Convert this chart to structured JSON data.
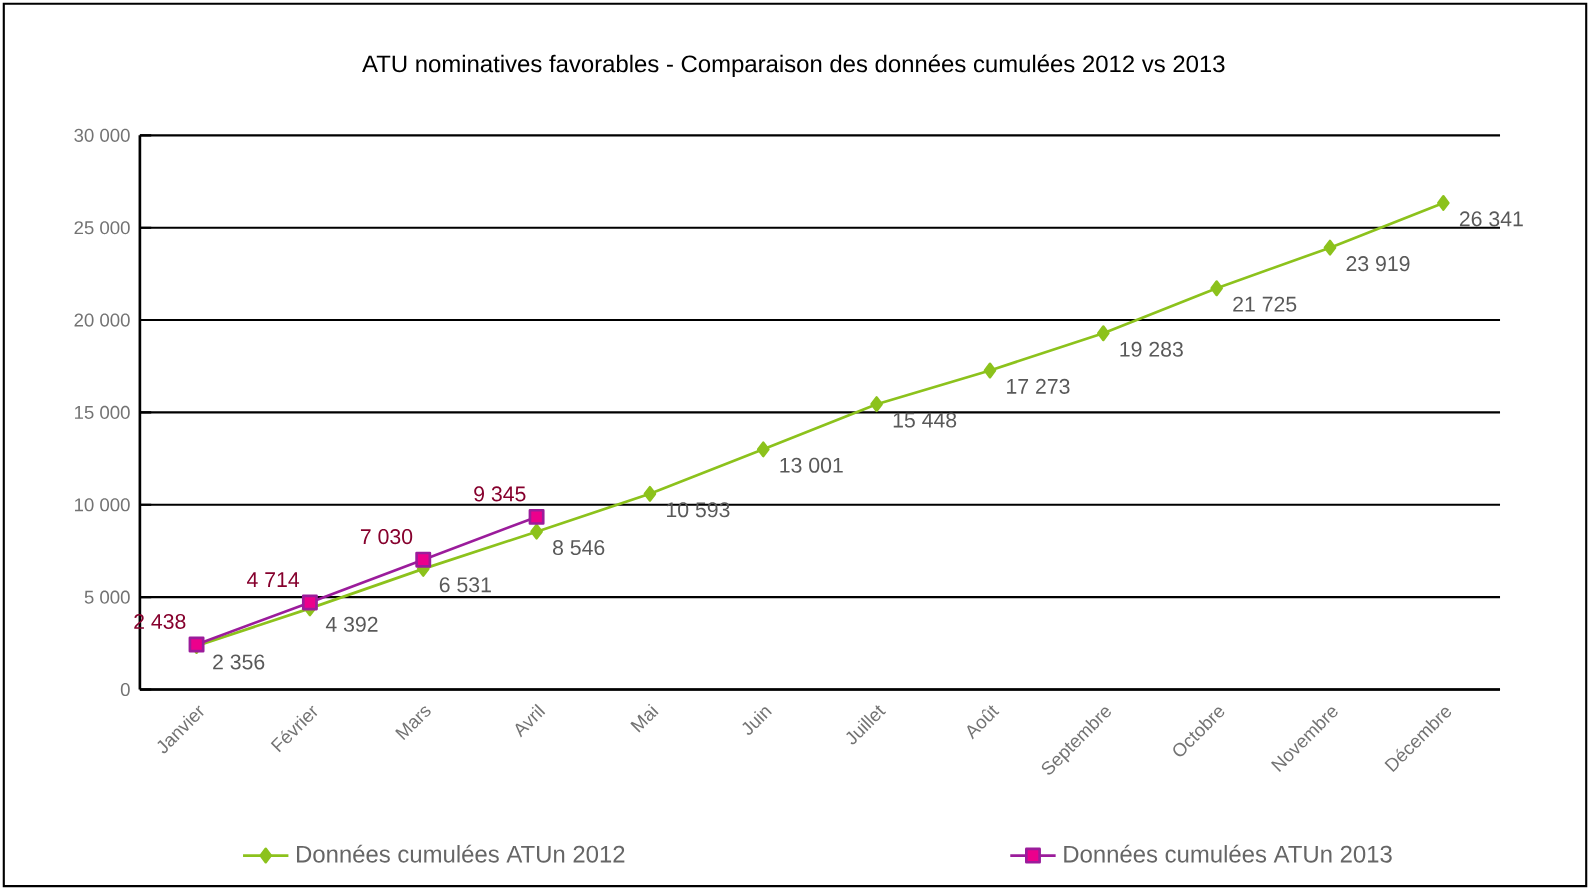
{
  "chart_data": {
    "type": "line",
    "title": "ATU nominatives favorables - Comparaison des données cumulées 2012 vs 2013",
    "categories": [
      "Janvier",
      "Février",
      "Mars",
      "Avril",
      "Mai",
      "Juin",
      "Juillet",
      "Août",
      "Septembre",
      "Octobre",
      "Novembre",
      "Décembre"
    ],
    "series": [
      {
        "name": "Données cumulées ATUn 2012",
        "color": "#8cc21c",
        "marker": "diamond",
        "values": [
          2356,
          4392,
          6531,
          8546,
          10593,
          13001,
          15448,
          17273,
          19283,
          21725,
          23919,
          26341
        ],
        "value_labels": [
          "2 356",
          "4 392",
          "6 531",
          "8 546",
          "10 593",
          "13 001",
          "15 448",
          "17 273",
          "19 283",
          "21 725",
          "23 919",
          "26 341"
        ]
      },
      {
        "name": "Données cumulées ATUn 2013",
        "color": "#9b1c9b",
        "marker": "square",
        "values": [
          2438,
          4714,
          7030,
          9345,
          null,
          null,
          null,
          null,
          null,
          null,
          null,
          null
        ],
        "value_labels": [
          "2 438",
          "4 714",
          "7 030",
          "9 345",
          null,
          null,
          null,
          null,
          null,
          null,
          null,
          null
        ]
      }
    ],
    "ylim": [
      0,
      30000
    ],
    "yticks": [
      0,
      {
        "value": 5000,
        "label": "5 000"
      },
      {
        "value": 10000,
        "label": "10 000"
      },
      {
        "value": 15000,
        "label": "15 000"
      },
      {
        "value": 20000,
        "label": "20 000"
      },
      {
        "value": 25000,
        "label": "25 000"
      },
      {
        "value": 30000,
        "label": "30 000"
      }
    ],
    "grid": "y",
    "legend": "bottom"
  }
}
